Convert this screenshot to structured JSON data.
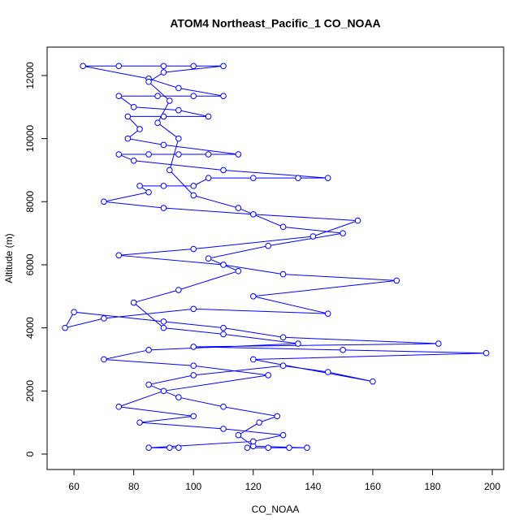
{
  "chart_data": {
    "type": "line",
    "title": "ATOM4 Northeast_Pacific_1 CO_NOAA",
    "xlabel": "CO_NOAA",
    "ylabel": "Altitude (m)",
    "color": "#0000ff",
    "markers": "circle",
    "xlim": [
      51.0,
      203.8
    ],
    "ylim": [
      -490,
      12900
    ],
    "xticks": [
      60,
      80,
      100,
      120,
      140,
      160,
      180,
      200
    ],
    "yticks": [
      0,
      2000,
      4000,
      6000,
      8000,
      10000,
      12000
    ],
    "x": [
      118,
      125,
      132,
      138,
      120,
      115,
      122,
      128,
      110,
      95,
      85,
      100,
      130,
      145,
      160,
      120,
      198,
      150,
      100,
      182,
      130,
      110,
      90,
      60,
      57,
      70,
      100,
      145,
      120,
      168,
      130,
      110,
      75,
      100,
      140,
      155,
      120,
      90,
      70,
      85,
      82,
      90,
      100,
      105,
      120,
      135,
      145,
      110,
      80,
      75,
      85,
      95,
      105,
      115,
      90,
      78,
      82,
      78,
      90,
      105,
      95,
      80,
      75,
      88,
      100,
      110,
      95,
      85,
      63,
      75,
      90,
      100,
      110,
      90,
      85,
      92,
      88,
      95,
      92,
      100,
      115,
      130,
      150,
      125,
      105,
      115,
      95,
      80,
      90,
      110,
      135,
      85,
      70,
      100,
      125,
      90,
      75,
      100,
      82,
      110,
      130,
      120,
      85,
      92,
      95
    ],
    "y": [
      200,
      200,
      200,
      200,
      250,
      600,
      1000,
      1200,
      1500,
      1800,
      2200,
      2500,
      2800,
      2600,
      2300,
      3000,
      3200,
      3300,
      3400,
      3500,
      3700,
      4000,
      4200,
      4500,
      4000,
      4300,
      4600,
      4450,
      5000,
      5500,
      5700,
      6000,
      6300,
      6500,
      6900,
      7400,
      7600,
      7800,
      8000,
      8300,
      8500,
      8500,
      8500,
      8750,
      8750,
      8750,
      8750,
      9000,
      9300,
      9500,
      9500,
      9500,
      9500,
      9500,
      9800,
      10000,
      10300,
      10700,
      10700,
      10700,
      10900,
      11000,
      11350,
      11350,
      11350,
      11350,
      11600,
      11900,
      12300,
      12300,
      12300,
      12300,
      12300,
      12100,
      11800,
      11200,
      10500,
      10000,
      9000,
      8200,
      7800,
      7200,
      7000,
      6600,
      6200,
      5800,
      5200,
      4800,
      4000,
      3800,
      3500,
      3300,
      3000,
      2800,
      2500,
      2000,
      1500,
      1200,
      1000,
      800,
      600,
      400,
      200,
      200,
      200
    ]
  }
}
